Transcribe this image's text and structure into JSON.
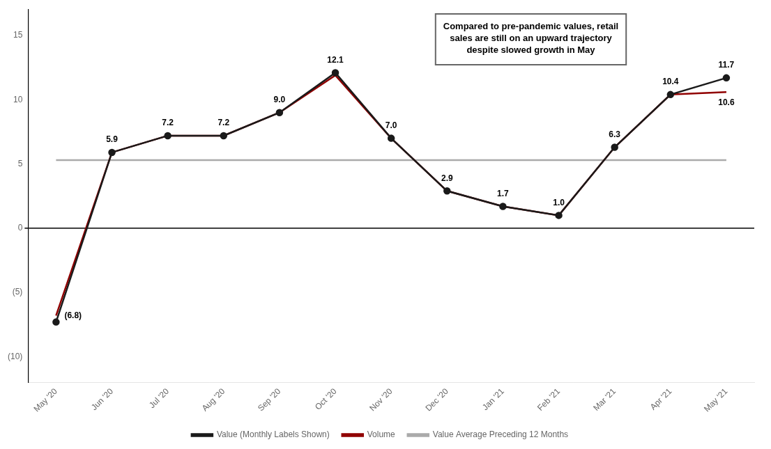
{
  "chart_data": {
    "type": "line",
    "categories": [
      "May '20",
      "Jun '20",
      "Jul '20",
      "Aug '20",
      "Sep '20",
      "Oct '20",
      "Nov '20",
      "Dec '20",
      "Jan '21",
      "Feb '21",
      "Mar '21",
      "Apr '21",
      "May '21"
    ],
    "series": [
      {
        "name": "Value (Monthly Labels Shown)",
        "color": "#1a1a1a",
        "marker": "circle",
        "values": [
          -7.3,
          5.9,
          7.2,
          7.2,
          9.0,
          12.1,
          7.0,
          2.9,
          1.7,
          1.0,
          6.3,
          10.4,
          11.7
        ],
        "value_labels": [
          null,
          "5.9",
          "7.2",
          "7.2",
          "9.0",
          "12.1",
          "7.0",
          "2.9",
          "1.7",
          "1.0",
          "6.3",
          "10.4",
          "11.7"
        ]
      },
      {
        "name": "Volume",
        "color": "#900000",
        "marker": "none",
        "values": [
          -6.8,
          5.9,
          7.2,
          7.2,
          9.0,
          11.9,
          7.0,
          2.9,
          1.7,
          1.0,
          6.3,
          10.4,
          10.6
        ],
        "value_labels": [
          "(6.8)",
          null,
          null,
          null,
          null,
          null,
          null,
          null,
          null,
          null,
          null,
          null,
          "10.6"
        ]
      },
      {
        "name": "Value Average Preceding 12 Months",
        "color": "#aaaaaa",
        "marker": "none",
        "values": [
          5.3,
          5.3,
          5.3,
          5.3,
          5.3,
          5.3,
          5.3,
          5.3,
          5.3,
          5.3,
          5.3,
          5.3,
          5.3
        ]
      }
    ],
    "annotation": "Compared to pre-pandemic values, retail\nsales are still on an upward trajectory\ndespite slowed growth in May",
    "ylim": [
      -12,
      17
    ],
    "yticks": [
      {
        "value": -10,
        "label": "(10)"
      },
      {
        "value": -5,
        "label": "(5)"
      },
      0,
      5,
      10,
      15
    ],
    "grid": false,
    "legend": "bottom",
    "data_labels": true
  }
}
